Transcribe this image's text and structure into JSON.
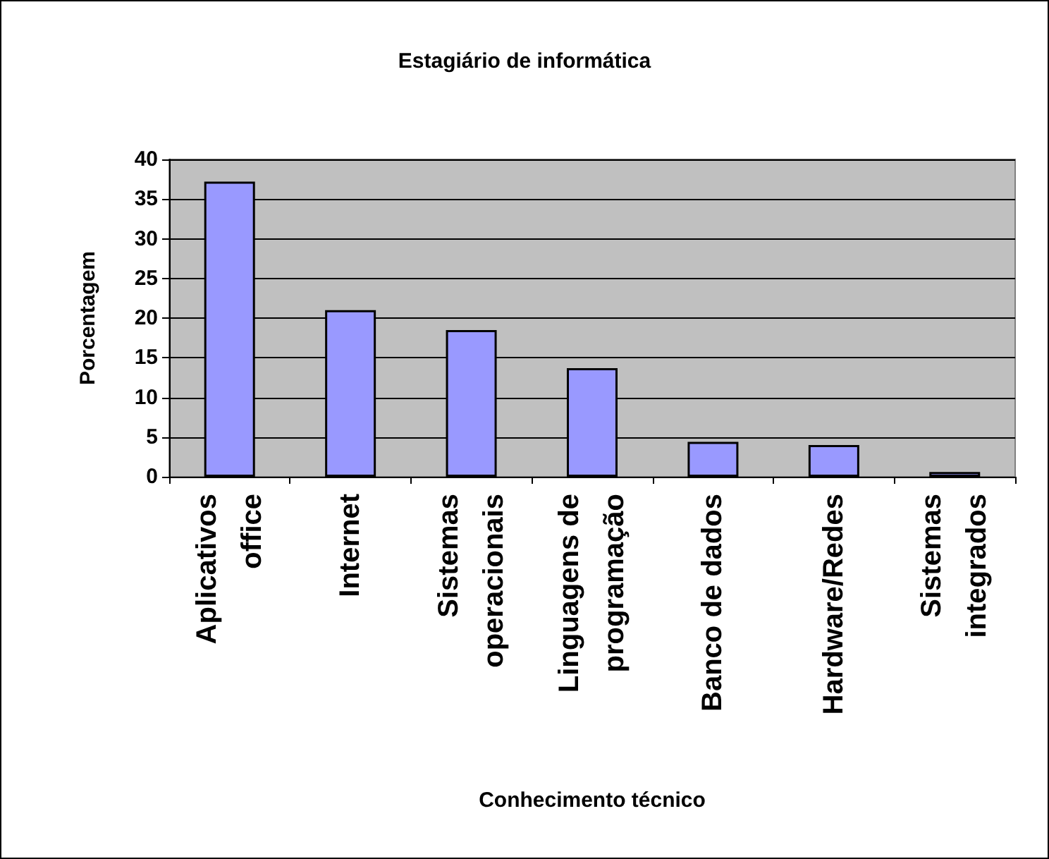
{
  "chart_data": {
    "type": "bar",
    "title": "Estagiário de informática",
    "xlabel": "Conhecimento técnico",
    "ylabel": "Porcentagem",
    "categories": [
      "Aplicativos\noffice",
      "Internet",
      "Sistemas\noperacionais",
      "Linguagens de\nprogramação",
      "Banco de dados",
      "Hardware/Redes",
      "Sistemas\nintegrados"
    ],
    "values": [
      37.2,
      21.0,
      18.5,
      13.7,
      4.4,
      4.0,
      0.6
    ],
    "color": "#9999ff",
    "ylim": [
      0,
      40
    ],
    "yticks": [
      0,
      5,
      10,
      15,
      20,
      25,
      30,
      35,
      40
    ],
    "grid": "y"
  }
}
